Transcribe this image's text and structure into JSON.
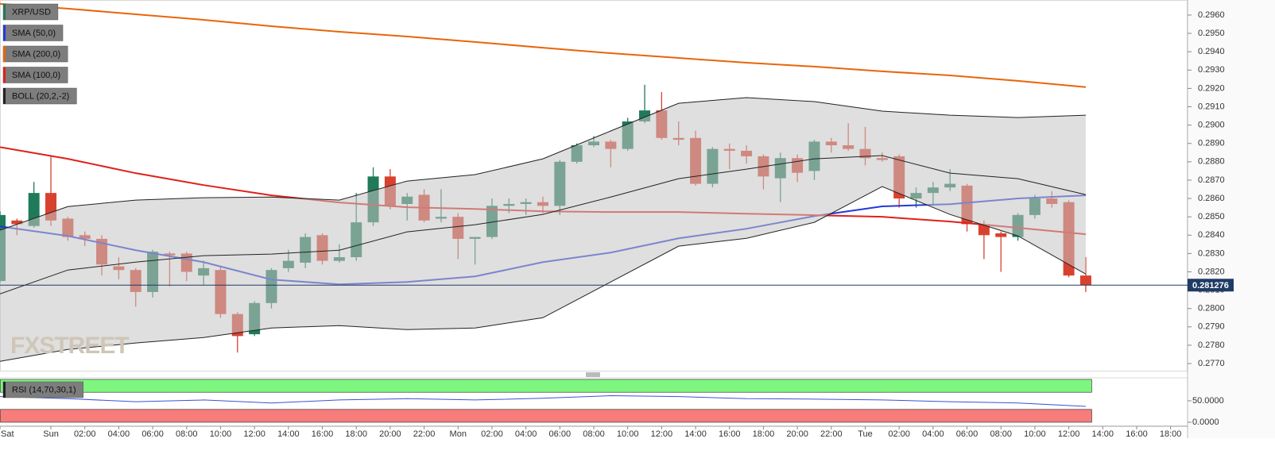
{
  "chart_data": [
    {
      "type": "candlestick",
      "symbol": "XRP/USD",
      "up_color": "#1f7a5a",
      "down_color": "#d9412f",
      "xlim": [
        -3,
        67
      ],
      "ylim": [
        0.27657,
        0.29682
      ],
      "yticks": [
        {
          "value": 0.277,
          "label": "0.2770"
        },
        {
          "value": 0.278,
          "label": "0.2780"
        },
        {
          "value": 0.279,
          "label": "0.2790"
        },
        {
          "value": 0.28,
          "label": "0.2800"
        },
        {
          "value": 0.281,
          "label": "0.2810"
        },
        {
          "value": 0.282,
          "label": "0.2820"
        },
        {
          "value": 0.283,
          "label": "0.2830"
        },
        {
          "value": 0.284,
          "label": "0.2840"
        },
        {
          "value": 0.285,
          "label": "0.2850"
        },
        {
          "value": 0.286,
          "label": "0.2860"
        },
        {
          "value": 0.287,
          "label": "0.2870"
        },
        {
          "value": 0.288,
          "label": "0.2880"
        },
        {
          "value": 0.289,
          "label": "0.2890"
        },
        {
          "value": 0.29,
          "label": "0.2900"
        },
        {
          "value": 0.291,
          "label": "0.2910"
        },
        {
          "value": 0.292,
          "label": "0.2920"
        },
        {
          "value": 0.293,
          "label": "0.2930"
        },
        {
          "value": 0.294,
          "label": "0.2940"
        },
        {
          "value": 0.295,
          "label": "0.2950"
        },
        {
          "value": 0.296,
          "label": "0.2960"
        }
      ],
      "x": [
        -3,
        -2,
        -1,
        0,
        1,
        2,
        3,
        4,
        5,
        6,
        7,
        8,
        9,
        10,
        11,
        12,
        13,
        14,
        15,
        16,
        17,
        18,
        19,
        20,
        21,
        22,
        23,
        24,
        25,
        26,
        27,
        28,
        29,
        30,
        31,
        32,
        33,
        34,
        35,
        36,
        37,
        38,
        39,
        40,
        41,
        42,
        43,
        44,
        45,
        46,
        47,
        48,
        49,
        50,
        51,
        52,
        53,
        54,
        55,
        56,
        57,
        58,
        59,
        60,
        61
      ],
      "open": [
        0.2815,
        0.2848,
        0.2845,
        0.2863,
        0.2849,
        0.284,
        0.2838,
        0.2823,
        0.2821,
        0.2809,
        0.283,
        0.283,
        0.2818,
        0.2821,
        0.2797,
        0.2786,
        0.2803,
        0.2822,
        0.2825,
        0.284,
        0.2826,
        0.2828,
        0.2847,
        0.2872,
        0.2857,
        0.2862,
        0.2849,
        0.285,
        0.2838,
        0.2839,
        0.2856,
        0.2857,
        0.2858,
        0.2856,
        0.288,
        0.2889,
        0.2891,
        0.2887,
        0.2902,
        0.2908,
        0.2893,
        0.2893,
        0.2868,
        0.2887,
        0.2886,
        0.2883,
        0.2871,
        0.2882,
        0.2875,
        0.2891,
        0.2889,
        0.2887,
        0.2882,
        0.2883,
        0.286,
        0.2863,
        0.2866,
        0.2867,
        0.2846,
        0.2841,
        0.2839,
        0.2851,
        0.286,
        0.2858,
        0.2818
      ],
      "high": [
        0.2853,
        0.2849,
        0.2869,
        0.2883,
        0.285,
        0.2842,
        0.284,
        0.2828,
        0.2822,
        0.2832,
        0.2831,
        0.2831,
        0.2826,
        0.2823,
        0.2798,
        0.2804,
        0.2822,
        0.2832,
        0.2841,
        0.2841,
        0.2835,
        0.2863,
        0.2877,
        0.2876,
        0.2863,
        0.2865,
        0.2865,
        0.2852,
        0.2839,
        0.286,
        0.286,
        0.286,
        0.2861,
        0.2881,
        0.289,
        0.2894,
        0.2892,
        0.2904,
        0.2922,
        0.2918,
        0.2902,
        0.2897,
        0.2888,
        0.289,
        0.2889,
        0.2884,
        0.2885,
        0.2884,
        0.2892,
        0.2893,
        0.2901,
        0.2899,
        0.2885,
        0.2884,
        0.2866,
        0.2869,
        0.2876,
        0.2868,
        0.2848,
        0.2842,
        0.2852,
        0.2862,
        0.2864,
        0.2859,
        0.2828
      ],
      "low": [
        0.2814,
        0.284,
        0.2844,
        0.2845,
        0.2837,
        0.2834,
        0.2818,
        0.2816,
        0.2801,
        0.2806,
        0.2812,
        0.2815,
        0.2813,
        0.2795,
        0.2776,
        0.2785,
        0.28,
        0.282,
        0.2822,
        0.2824,
        0.2825,
        0.2826,
        0.2845,
        0.2854,
        0.2848,
        0.2847,
        0.2847,
        0.2827,
        0.2824,
        0.2838,
        0.2852,
        0.2851,
        0.2852,
        0.2851,
        0.2879,
        0.2888,
        0.2877,
        0.2886,
        0.2901,
        0.2892,
        0.2889,
        0.2867,
        0.2866,
        0.2876,
        0.2879,
        0.2865,
        0.2858,
        0.2869,
        0.287,
        0.2885,
        0.2886,
        0.2878,
        0.288,
        0.2855,
        0.2855,
        0.2856,
        0.2864,
        0.2842,
        0.2827,
        0.282,
        0.2837,
        0.2849,
        0.2855,
        0.2817,
        0.2809
      ],
      "close": [
        0.2851,
        0.2846,
        0.2863,
        0.2848,
        0.2839,
        0.2838,
        0.2824,
        0.2821,
        0.2809,
        0.2831,
        0.2829,
        0.282,
        0.2822,
        0.2797,
        0.2785,
        0.2803,
        0.2821,
        0.2826,
        0.2839,
        0.2826,
        0.2828,
        0.2847,
        0.2872,
        0.2856,
        0.2861,
        0.2848,
        0.285,
        0.2838,
        0.2839,
        0.2856,
        0.2857,
        0.2858,
        0.2856,
        0.288,
        0.2889,
        0.2891,
        0.2887,
        0.2902,
        0.2908,
        0.2893,
        0.2892,
        0.2868,
        0.2887,
        0.2886,
        0.2883,
        0.2872,
        0.2882,
        0.2874,
        0.2891,
        0.2889,
        0.2887,
        0.2882,
        0.2881,
        0.286,
        0.2863,
        0.2866,
        0.2868,
        0.2846,
        0.284,
        0.2839,
        0.2851,
        0.286,
        0.2857,
        0.2818,
        0.281276
      ],
      "last_price": 0.281276,
      "last_price_color": "#1f3b66",
      "indicators": {
        "x": [
          -3,
          1,
          5,
          9,
          13,
          17,
          21,
          25,
          29,
          33,
          37,
          41,
          45,
          49,
          53,
          57,
          61
        ],
        "series": [
          {
            "name": "SMA (50,0)",
            "color": "#2438d8",
            "values": [
              0.28448,
              0.28396,
              0.28318,
              0.28253,
              0.28158,
              0.28132,
              0.28145,
              0.28175,
              0.28253,
              0.28305,
              0.28383,
              0.28435,
              0.28504,
              0.28557,
              0.28569,
              0.286,
              0.28617
            ]
          },
          {
            "name": "SMA (200,0)",
            "color": "#e8650a",
            "values": [
              0.29661,
              0.29635,
              0.29604,
              0.29574,
              0.29539,
              0.29509,
              0.29483,
              0.29453,
              0.29422,
              0.29392,
              0.29366,
              0.2934,
              0.29319,
              0.29293,
              0.29271,
              0.29241,
              0.29207
            ]
          },
          {
            "name": "SMA (100,0)",
            "color": "#e0201a",
            "values": [
              0.2888,
              0.28816,
              0.28738,
              0.28673,
              0.28617,
              0.28578,
              0.28552,
              0.28543,
              0.2853,
              0.28526,
              0.28526,
              0.28517,
              0.28509,
              0.285,
              0.28474,
              0.2844,
              0.28405
            ]
          }
        ],
        "bollinger": {
          "name": "BOLL (20,2,-2)",
          "color": "#222222",
          "fill": "#c4c4c4",
          "upper": [
            0.28427,
            0.28556,
            0.28591,
            0.28604,
            0.28608,
            0.28591,
            0.28695,
            0.2873,
            0.28816,
            0.28968,
            0.29119,
            0.2915,
            0.29128,
            0.29076,
            0.29054,
            0.29041,
            0.29054
          ],
          "middle": [
            0.2808,
            0.2821,
            0.28253,
            0.28288,
            0.28297,
            0.28318,
            0.28418,
            0.28457,
            0.28513,
            0.28608,
            0.28708,
            0.2876,
            0.28816,
            0.28834,
            0.28738,
            0.28708,
            0.28621
          ],
          "lower": [
            0.27712,
            0.27777,
            0.27812,
            0.27842,
            0.27894,
            0.27907,
            0.27885,
            0.27894,
            0.2795,
            0.28145,
            0.2834,
            0.28383,
            0.2847,
            0.28665,
            0.28513,
            0.28396,
            0.28188
          ]
        }
      },
      "watermark": "FXSTREET"
    },
    {
      "type": "line",
      "name": "RSI (14,70,30,1)",
      "color": "#3a52d6",
      "xlim": [
        -3,
        67
      ],
      "ylim": [
        0,
        100
      ],
      "yticks": [
        {
          "value": 50,
          "label": "50.0000"
        },
        {
          "value": 0,
          "label": "0.0000"
        }
      ],
      "bands": [
        {
          "from": 70,
          "to": 100,
          "color": "#7ef57e"
        },
        {
          "from": 0,
          "to": 30,
          "color": "#f77c7c"
        }
      ],
      "x": [
        -3,
        1,
        5,
        9,
        13,
        17,
        21,
        25,
        29,
        33,
        37,
        41,
        45,
        49,
        53,
        57,
        61
      ],
      "values": [
        60,
        55,
        48,
        52,
        45,
        52,
        55,
        52,
        56,
        62,
        60,
        55,
        54,
        52,
        48,
        45,
        37
      ],
      "xticks": [
        {
          "value": -3,
          "label": "Sat"
        },
        {
          "value": 0,
          "label": "Sun"
        },
        {
          "value": 2,
          "label": "02:00"
        },
        {
          "value": 4,
          "label": "04:00"
        },
        {
          "value": 6,
          "label": "06:00"
        },
        {
          "value": 8,
          "label": "08:00"
        },
        {
          "value": 10,
          "label": "10:00"
        },
        {
          "value": 12,
          "label": "12:00"
        },
        {
          "value": 14,
          "label": "14:00"
        },
        {
          "value": 16,
          "label": "16:00"
        },
        {
          "value": 18,
          "label": "18:00"
        },
        {
          "value": 20,
          "label": "20:00"
        },
        {
          "value": 22,
          "label": "22:00"
        },
        {
          "value": 24,
          "label": "Mon"
        },
        {
          "value": 26,
          "label": "02:00"
        },
        {
          "value": 28,
          "label": "04:00"
        },
        {
          "value": 30,
          "label": "06:00"
        },
        {
          "value": 32,
          "label": "08:00"
        },
        {
          "value": 34,
          "label": "10:00"
        },
        {
          "value": 36,
          "label": "12:00"
        },
        {
          "value": 38,
          "label": "14:00"
        },
        {
          "value": 40,
          "label": "16:00"
        },
        {
          "value": 42,
          "label": "18:00"
        },
        {
          "value": 44,
          "label": "20:00"
        },
        {
          "value": 46,
          "label": "22:00"
        },
        {
          "value": 48,
          "label": "Tue"
        },
        {
          "value": 50,
          "label": "02:00"
        },
        {
          "value": 52,
          "label": "04:00"
        },
        {
          "value": 54,
          "label": "06:00"
        },
        {
          "value": 56,
          "label": "08:00"
        },
        {
          "value": 58,
          "label": "10:00"
        },
        {
          "value": 60,
          "label": "12:00"
        },
        {
          "value": 62,
          "label": "14:00"
        },
        {
          "value": 64,
          "label": "16:00"
        },
        {
          "value": 66,
          "label": "18:00"
        }
      ]
    }
  ]
}
